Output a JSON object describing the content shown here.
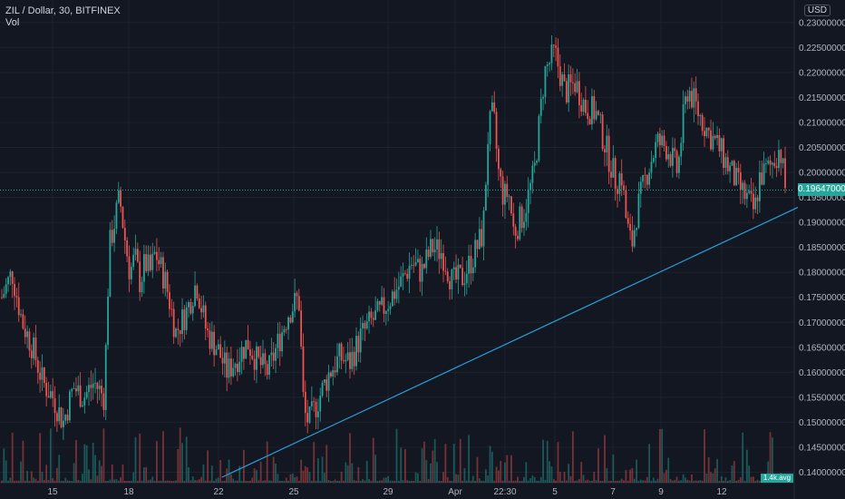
{
  "header": {
    "symbol_line": "ZIL / Dollar, 30, BITFINEX",
    "volume_label": "Vol"
  },
  "currency_button": "USD",
  "last_price_label": "0.19647000",
  "volume_tag": "1.4k.avg",
  "colors": {
    "background": "#131722",
    "up": "#26a69a",
    "down": "#ef5350",
    "trendline": "#2b9fd8",
    "grid": "#1e222d",
    "text": "#b2b5be"
  },
  "chart_data": {
    "type": "candlestick",
    "title": "ZIL / Dollar, 30, BITFINEX",
    "y_axis": {
      "min": 0.139,
      "max": 0.2345,
      "ticks": [
        "0.14000000",
        "0.14500000",
        "0.15000000",
        "0.15500000",
        "0.16000000",
        "0.16500000",
        "0.17000000",
        "0.17500000",
        "0.18000000",
        "0.18500000",
        "0.19000000",
        "0.19500000",
        "0.20000000",
        "0.20500000",
        "0.21000000",
        "0.21500000",
        "0.22000000",
        "0.22500000",
        "0.23000000"
      ]
    },
    "x_axis": {
      "ticks": [
        "15",
        "18",
        "22",
        "25",
        "29",
        "Apr",
        "22:30",
        "5",
        "7",
        "9",
        "12"
      ]
    },
    "last_price": 0.19647,
    "price_path": [
      [
        0,
        0.175
      ],
      [
        2,
        0.18
      ],
      [
        4,
        0.17
      ],
      [
        6,
        0.165
      ],
      [
        8,
        0.158
      ],
      [
        10,
        0.155
      ],
      [
        12,
        0.15
      ],
      [
        14,
        0.157
      ],
      [
        16,
        0.155
      ],
      [
        18,
        0.158
      ],
      [
        20,
        0.155
      ],
      [
        21,
        0.185
      ],
      [
        22,
        0.19
      ],
      [
        23,
        0.195
      ],
      [
        24,
        0.187
      ],
      [
        25,
        0.18
      ],
      [
        26,
        0.183
      ],
      [
        27,
        0.178
      ],
      [
        28,
        0.182
      ],
      [
        29,
        0.18
      ],
      [
        30,
        0.184
      ],
      [
        32,
        0.178
      ],
      [
        34,
        0.168
      ],
      [
        36,
        0.172
      ],
      [
        38,
        0.178
      ],
      [
        40,
        0.168
      ],
      [
        42,
        0.165
      ],
      [
        44,
        0.16
      ],
      [
        46,
        0.163
      ],
      [
        48,
        0.166
      ],
      [
        50,
        0.162
      ],
      [
        52,
        0.16
      ],
      [
        54,
        0.166
      ],
      [
        56,
        0.172
      ],
      [
        58,
        0.175
      ],
      [
        59,
        0.152
      ],
      [
        60,
        0.15
      ],
      [
        62,
        0.155
      ],
      [
        64,
        0.16
      ],
      [
        66,
        0.163
      ],
      [
        68,
        0.162
      ],
      [
        70,
        0.167
      ],
      [
        72,
        0.17
      ],
      [
        74,
        0.172
      ],
      [
        76,
        0.175
      ],
      [
        78,
        0.178
      ],
      [
        80,
        0.182
      ],
      [
        82,
        0.18
      ],
      [
        84,
        0.185
      ],
      [
        86,
        0.184
      ],
      [
        88,
        0.178
      ],
      [
        90,
        0.179
      ],
      [
        92,
        0.183
      ],
      [
        94,
        0.188
      ],
      [
        95,
        0.208
      ],
      [
        96,
        0.212
      ],
      [
        97,
        0.2
      ],
      [
        98,
        0.195
      ],
      [
        99,
        0.196
      ],
      [
        100,
        0.188
      ],
      [
        101,
        0.19
      ],
      [
        102,
        0.192
      ],
      [
        104,
        0.2
      ],
      [
        106,
        0.22
      ],
      [
        108,
        0.224
      ],
      [
        110,
        0.216
      ],
      [
        112,
        0.218
      ],
      [
        114,
        0.213
      ],
      [
        116,
        0.212
      ],
      [
        118,
        0.205
      ],
      [
        120,
        0.198
      ],
      [
        121,
        0.2
      ],
      [
        122,
        0.19
      ],
      [
        123,
        0.185
      ],
      [
        124,
        0.192
      ],
      [
        126,
        0.2
      ],
      [
        128,
        0.206
      ],
      [
        130,
        0.205
      ],
      [
        132,
        0.2
      ],
      [
        133,
        0.21
      ],
      [
        134,
        0.217
      ],
      [
        136,
        0.212
      ],
      [
        138,
        0.208
      ],
      [
        140,
        0.205
      ],
      [
        142,
        0.201
      ],
      [
        144,
        0.197
      ],
      [
        146,
        0.194
      ],
      [
        147,
        0.192
      ],
      [
        148,
        0.199
      ],
      [
        150,
        0.201
      ],
      [
        152,
        0.205
      ],
      [
        153,
        0.197
      ]
    ],
    "trendline": {
      "from": [
        43,
        0.139
      ],
      "to": [
        153,
        0.1915
      ]
    }
  }
}
